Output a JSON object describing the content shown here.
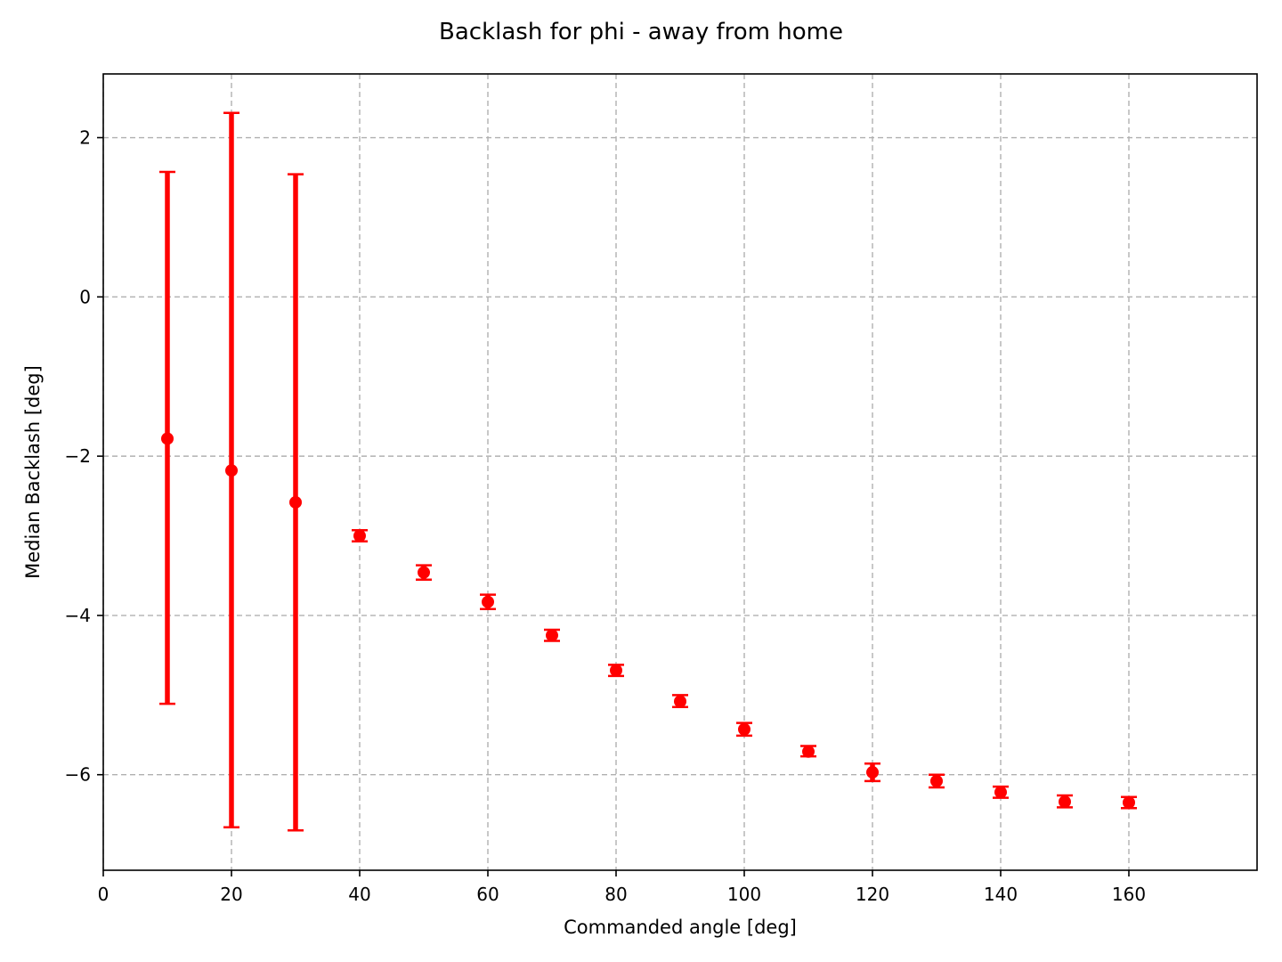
{
  "chart_data": {
    "type": "scatter",
    "title": "Backlash for phi - away from home",
    "xlabel": "Commanded angle [deg]",
    "ylabel": "Median Backlash [deg]",
    "xlim": [
      0,
      180
    ],
    "ylim": [
      -7.2,
      2.8
    ],
    "xticks": [
      0,
      20,
      40,
      60,
      80,
      100,
      120,
      140,
      160
    ],
    "yticks": [
      2,
      0,
      -2,
      -4,
      -6
    ],
    "ytick_labels": [
      "2",
      "0",
      "−2",
      "−4",
      "−6"
    ],
    "grid": true,
    "color": "#ff0000",
    "points": [
      {
        "x": 10,
        "y": -1.78,
        "lower": -5.11,
        "upper": 1.57
      },
      {
        "x": 20,
        "y": -2.18,
        "lower": -6.66,
        "upper": 2.31
      },
      {
        "x": 30,
        "y": -2.58,
        "lower": -6.7,
        "upper": 1.54
      },
      {
        "x": 40,
        "y": -3.0,
        "lower": -3.07,
        "upper": -2.93
      },
      {
        "x": 50,
        "y": -3.46,
        "lower": -3.55,
        "upper": -3.37
      },
      {
        "x": 60,
        "y": -3.83,
        "lower": -3.92,
        "upper": -3.74
      },
      {
        "x": 70,
        "y": -4.25,
        "lower": -4.32,
        "upper": -4.18
      },
      {
        "x": 80,
        "y": -4.69,
        "lower": -4.76,
        "upper": -4.62
      },
      {
        "x": 90,
        "y": -5.08,
        "lower": -5.15,
        "upper": -5.0
      },
      {
        "x": 100,
        "y": -5.43,
        "lower": -5.51,
        "upper": -5.35
      },
      {
        "x": 110,
        "y": -5.71,
        "lower": -5.77,
        "upper": -5.64
      },
      {
        "x": 120,
        "y": -5.97,
        "lower": -6.08,
        "upper": -5.86
      },
      {
        "x": 130,
        "y": -6.08,
        "lower": -6.16,
        "upper": -6.0
      },
      {
        "x": 140,
        "y": -6.22,
        "lower": -6.29,
        "upper": -6.15
      },
      {
        "x": 150,
        "y": -6.34,
        "lower": -6.41,
        "upper": -6.26
      },
      {
        "x": 160,
        "y": -6.35,
        "lower": -6.42,
        "upper": -6.28
      }
    ]
  }
}
